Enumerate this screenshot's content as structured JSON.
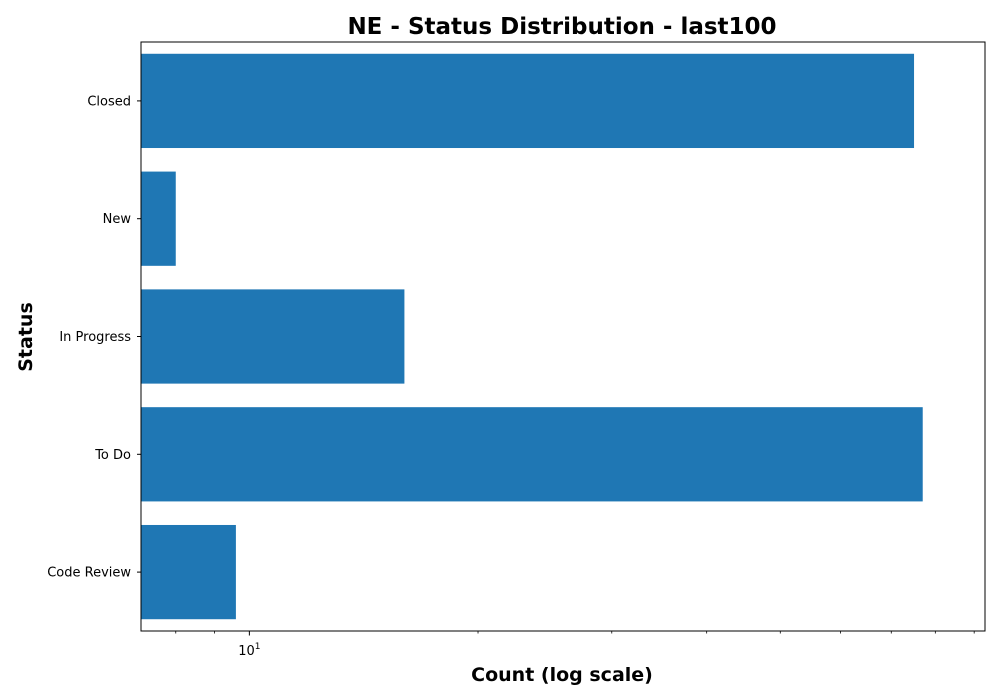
{
  "chart_data": {
    "type": "bar",
    "orientation": "horizontal",
    "title": "NE - Status Distribution - last100",
    "xlabel": "Count (log scale)",
    "ylabel": "Status",
    "x_scale": "log",
    "xlim": [
      7.2,
      93
    ],
    "categories": [
      "Closed",
      "New",
      "In Progress",
      "To Do",
      "Code Review"
    ],
    "values": [
      75,
      8,
      16,
      77,
      9.6
    ],
    "x_major_ticks": [
      {
        "value": 10,
        "base": "10",
        "exponent": "1"
      }
    ],
    "x_minor_ticks": [
      8,
      9,
      20,
      30,
      40,
      50,
      60,
      70,
      80,
      90
    ],
    "grid": false,
    "legend": "none",
    "colors": {
      "bar": "#1f77b4",
      "axis": "#000000",
      "background": "#ffffff"
    }
  }
}
